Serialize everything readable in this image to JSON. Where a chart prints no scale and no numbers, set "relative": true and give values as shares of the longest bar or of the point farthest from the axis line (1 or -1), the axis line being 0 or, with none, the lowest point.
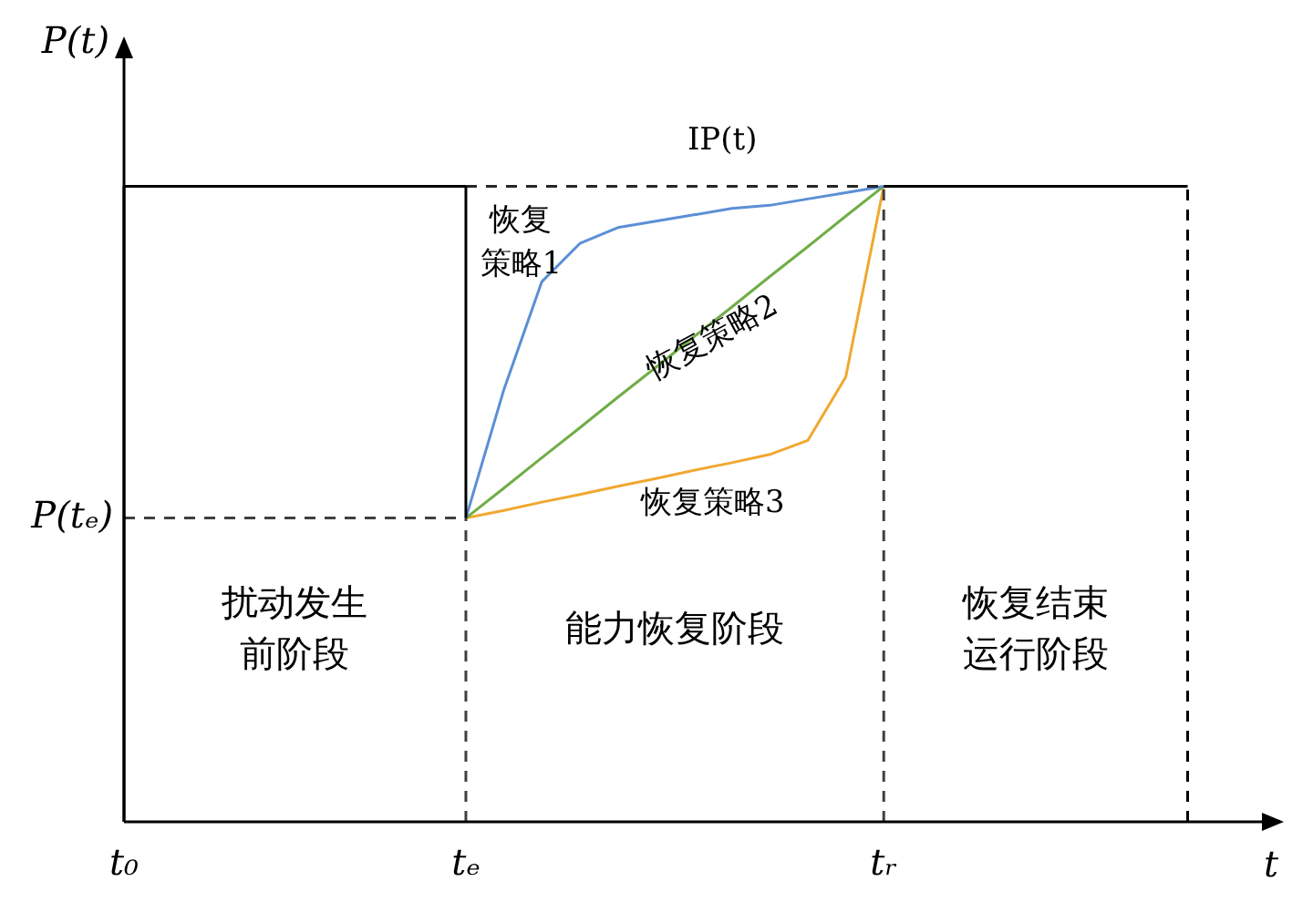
{
  "chart_data": {
    "type": "line",
    "relative": true,
    "categories": [
      "t₀",
      null,
      null,
      null,
      null,
      null,
      null,
      null,
      null,
      "tₑ",
      null,
      null,
      null,
      null,
      null,
      null,
      null,
      null,
      null,
      null,
      "tᵣ",
      null,
      null,
      null,
      null,
      null,
      null,
      null,
      null
    ],
    "xlabel": "t",
    "ylabel": "P(t)",
    "grid": false,
    "legend": false,
    "marker": "none",
    "series": [
      {
        "color": "#000000",
        "values": [
          1,
          1,
          1,
          1,
          1,
          1,
          1,
          1,
          1,
          1,
          null,
          null,
          null,
          null,
          null,
          null,
          null,
          null,
          null,
          null,
          1,
          1,
          1,
          1,
          1,
          1,
          1,
          1,
          1
        ]
      },
      {
        "name": "IP(t)",
        "color": "#262626",
        "line_style": "dashed",
        "values": [
          null,
          null,
          null,
          null,
          null,
          null,
          null,
          null,
          null,
          1,
          1,
          1,
          1,
          1,
          1,
          1,
          1,
          1,
          1,
          1,
          1,
          null,
          null,
          null,
          null,
          null,
          null,
          null,
          null
        ]
      },
      {
        "name": "恢复策略1",
        "color": "#5b8fd6",
        "values": [
          null,
          null,
          null,
          null,
          null,
          null,
          null,
          null,
          null,
          0.478,
          0.68,
          0.85,
          0.91,
          0.935,
          0.945,
          0.955,
          0.965,
          0.97,
          0.98,
          0.99,
          1,
          null,
          null,
          null,
          null,
          null,
          null,
          null,
          null
        ]
      },
      {
        "name": "恢复策略2",
        "color": "#70ad47",
        "values": [
          null,
          null,
          null,
          null,
          null,
          null,
          null,
          null,
          null,
          0.478,
          0.525,
          0.573,
          0.62,
          0.668,
          0.715,
          0.763,
          0.81,
          0.858,
          0.905,
          0.953,
          1,
          null,
          null,
          null,
          null,
          null,
          null,
          null,
          null
        ]
      },
      {
        "name": "恢复策略3",
        "color": "#f0a830",
        "values": [
          null,
          null,
          null,
          null,
          null,
          null,
          null,
          null,
          null,
          0.478,
          0.49,
          0.503,
          0.515,
          0.528,
          0.54,
          0.553,
          0.565,
          0.578,
          0.6,
          0.7,
          1,
          null,
          null,
          null,
          null,
          null,
          null,
          null,
          null
        ]
      },
      {
        "color": "#404040",
        "line_style": "dashed",
        "values": [
          0.478,
          0.478,
          0.478,
          0.478,
          0.478,
          0.478,
          0.478,
          0.478,
          0.478,
          0.478,
          null,
          null,
          null,
          null,
          null,
          null,
          null,
          null,
          null,
          null,
          null,
          null,
          null,
          null,
          null,
          null,
          null,
          null,
          null
        ]
      }
    ],
    "ref_lines": [
      {
        "axis": "x",
        "value": "tₑ",
        "line_style": "dashed",
        "color": "#404040"
      },
      {
        "axis": "x",
        "value": "tᵣ",
        "line_style": "dashed",
        "color": "#404040"
      }
    ],
    "annotations": [
      "扰动发生前阶段",
      "能力恢复阶段",
      "恢复结束运行阶段",
      "P(tₑ)"
    ]
  }
}
